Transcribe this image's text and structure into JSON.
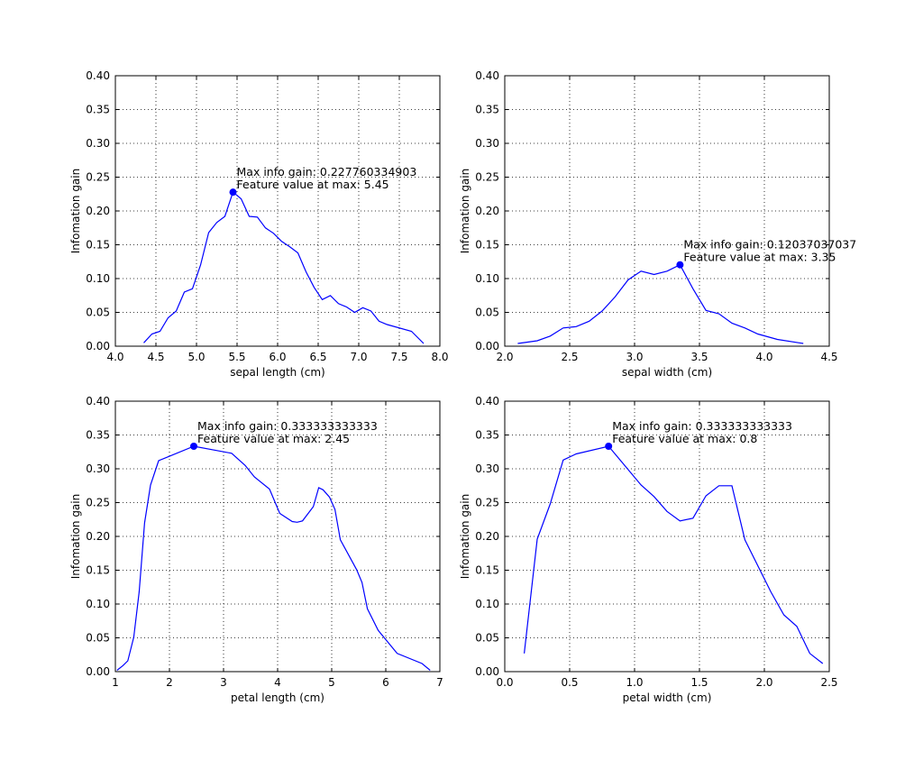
{
  "chart_data": [
    {
      "type": "line",
      "xlabel": "sepal length (cm)",
      "ylabel": "Infomation gain",
      "xlim": [
        4.0,
        8.0
      ],
      "ylim": [
        0.0,
        0.4
      ],
      "xticks": [
        "4.0",
        "4.5",
        "5.0",
        "5.5",
        "6.0",
        "6.5",
        "7.0",
        "7.5",
        "8.0"
      ],
      "yticks": [
        "0.00",
        "0.05",
        "0.10",
        "0.15",
        "0.20",
        "0.25",
        "0.30",
        "0.35",
        "0.40"
      ],
      "grid": true,
      "color": "#0000ff",
      "x": [
        4.35,
        4.45,
        4.55,
        4.65,
        4.75,
        4.85,
        4.95,
        5.05,
        5.15,
        5.25,
        5.35,
        5.45,
        5.55,
        5.65,
        5.75,
        5.85,
        5.95,
        6.05,
        6.15,
        6.25,
        6.35,
        6.45,
        6.55,
        6.65,
        6.75,
        6.85,
        6.95,
        7.05,
        7.15,
        7.25,
        7.35,
        7.65,
        7.8
      ],
      "y": [
        0.005,
        0.018,
        0.022,
        0.042,
        0.052,
        0.08,
        0.085,
        0.12,
        0.168,
        0.183,
        0.192,
        0.228,
        0.218,
        0.192,
        0.191,
        0.175,
        0.167,
        0.155,
        0.147,
        0.138,
        0.11,
        0.087,
        0.069,
        0.075,
        0.063,
        0.058,
        0.05,
        0.057,
        0.052,
        0.037,
        0.032,
        0.022,
        0.004
      ],
      "max_point": [
        5.45,
        0.227760334903
      ],
      "annotation": [
        "Max info gain: 0.227760334903",
        "Feature value at max: 5.45"
      ]
    },
    {
      "type": "line",
      "xlabel": "sepal width (cm)",
      "ylabel": "Infomation gain",
      "xlim": [
        2.0,
        4.5
      ],
      "ylim": [
        0.0,
        0.4
      ],
      "xticks": [
        "2.0",
        "2.5",
        "3.0",
        "3.5",
        "4.0",
        "4.5"
      ],
      "yticks": [
        "0.00",
        "0.05",
        "0.10",
        "0.15",
        "0.20",
        "0.25",
        "0.30",
        "0.35",
        "0.40"
      ],
      "grid": true,
      "color": "#0000ff",
      "x": [
        2.1,
        2.25,
        2.35,
        2.45,
        2.55,
        2.65,
        2.75,
        2.85,
        2.95,
        3.05,
        3.15,
        3.25,
        3.35,
        3.45,
        3.55,
        3.65,
        3.75,
        3.85,
        3.95,
        4.1,
        4.3
      ],
      "y": [
        0.004,
        0.008,
        0.015,
        0.027,
        0.029,
        0.037,
        0.052,
        0.073,
        0.098,
        0.111,
        0.106,
        0.111,
        0.12037037037,
        0.085,
        0.053,
        0.048,
        0.034,
        0.027,
        0.018,
        0.01,
        0.004
      ],
      "max_point": [
        3.35,
        0.12037037037
      ],
      "annotation": [
        "Max info gain: 0.12037037037",
        "Feature value at max: 3.35"
      ]
    },
    {
      "type": "line",
      "xlabel": "petal length (cm)",
      "ylabel": "Infomation gain",
      "xlim": [
        1,
        7
      ],
      "ylim": [
        0.0,
        0.4
      ],
      "xticks": [
        "1",
        "2",
        "3",
        "4",
        "5",
        "6",
        "7"
      ],
      "yticks": [
        "0.00",
        "0.05",
        "0.10",
        "0.15",
        "0.20",
        "0.25",
        "0.30",
        "0.35",
        "0.40"
      ],
      "grid": true,
      "color": "#0000ff",
      "x": [
        1.03,
        1.14,
        1.23,
        1.34,
        1.44,
        1.54,
        1.65,
        1.8,
        2.45,
        3.15,
        3.4,
        3.57,
        3.85,
        4.04,
        4.27,
        4.36,
        4.46,
        4.66,
        4.76,
        4.84,
        4.96,
        5.06,
        5.16,
        5.46,
        5.56,
        5.66,
        5.86,
        6.21,
        6.67,
        6.82
      ],
      "y": [
        0.002,
        0.009,
        0.016,
        0.051,
        0.118,
        0.22,
        0.276,
        0.312,
        0.333333333333,
        0.323,
        0.305,
        0.288,
        0.27,
        0.234,
        0.222,
        0.221,
        0.223,
        0.244,
        0.272,
        0.269,
        0.258,
        0.24,
        0.195,
        0.151,
        0.132,
        0.093,
        0.061,
        0.027,
        0.012,
        0.002
      ],
      "max_point": [
        2.45,
        0.333333333333
      ],
      "annotation": [
        "Max info gain: 0.333333333333",
        "Feature value at max: 2.45"
      ]
    },
    {
      "type": "line",
      "xlabel": "petal width (cm)",
      "ylabel": "Infomation gain",
      "xlim": [
        0.0,
        2.5
      ],
      "ylim": [
        0.0,
        0.4
      ],
      "xticks": [
        "0.0",
        "0.5",
        "1.0",
        "1.5",
        "2.0",
        "2.5"
      ],
      "yticks": [
        "0.00",
        "0.05",
        "0.10",
        "0.15",
        "0.20",
        "0.25",
        "0.30",
        "0.35",
        "0.40"
      ],
      "grid": true,
      "color": "#0000ff",
      "x": [
        0.15,
        0.25,
        0.35,
        0.45,
        0.55,
        0.8,
        1.05,
        1.15,
        1.25,
        1.35,
        1.45,
        1.55,
        1.65,
        1.75,
        1.85,
        2.05,
        2.15,
        2.25,
        2.35,
        2.45
      ],
      "y": [
        0.027,
        0.196,
        0.248,
        0.313,
        0.322,
        0.333333333333,
        0.276,
        0.259,
        0.237,
        0.223,
        0.227,
        0.26,
        0.275,
        0.275,
        0.195,
        0.118,
        0.084,
        0.067,
        0.027,
        0.012
      ],
      "max_point": [
        0.8,
        0.333333333333
      ],
      "annotation": [
        "Max info gain: 0.333333333333",
        "Feature value at max: 0.8"
      ]
    }
  ]
}
